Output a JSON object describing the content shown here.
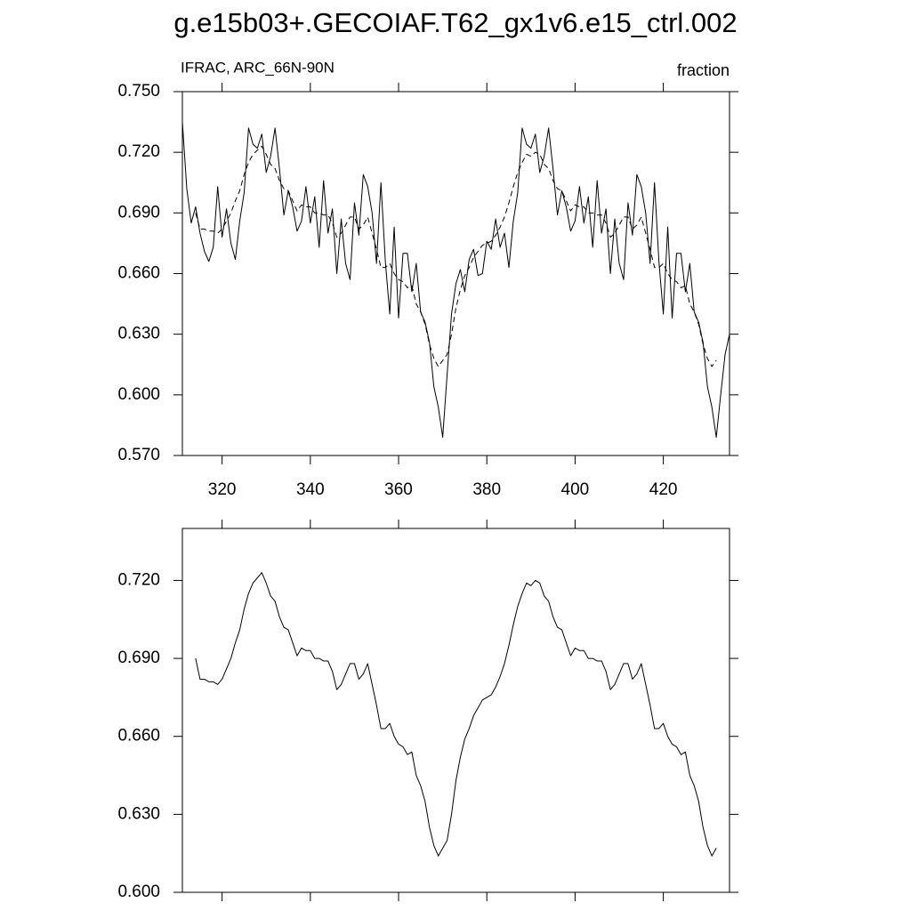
{
  "chart_data": [
    {
      "type": "line",
      "title": "g.e15b03+.GECOIAF.T62_gx1v6.e15_ctrl.002",
      "subtitle": "IFRAC, ARC_66N-90N",
      "units": "fraction",
      "x": [
        311,
        312,
        313,
        314,
        315,
        316,
        317,
        318,
        319,
        320,
        321,
        322,
        323,
        324,
        325,
        326,
        327,
        328,
        329,
        330,
        331,
        332,
        333,
        334,
        335,
        336,
        337,
        338,
        339,
        340,
        341,
        342,
        343,
        344,
        345,
        346,
        347,
        348,
        349,
        350,
        351,
        352,
        353,
        354,
        355,
        356,
        357,
        358,
        359,
        360,
        361,
        362,
        363,
        364,
        365,
        366,
        367,
        368,
        369,
        370,
        371,
        372,
        373,
        374,
        375,
        376,
        377,
        378,
        379,
        380,
        381,
        382,
        383,
        384,
        385,
        386,
        387,
        388,
        389,
        390,
        391,
        392,
        393,
        394,
        395,
        396,
        397,
        398,
        399,
        400,
        401,
        402,
        403,
        404,
        405,
        406,
        407,
        408,
        409,
        410,
        411,
        412,
        413,
        414,
        415,
        416,
        417,
        418,
        419,
        420,
        421,
        422,
        423,
        424,
        425,
        426,
        427,
        428,
        429,
        430,
        431,
        432,
        433,
        434,
        435
      ],
      "series": [
        {
          "color": "#000000",
          "dashed": false,
          "values": [
            0.735,
            0.702,
            0.685,
            0.693,
            0.68,
            0.671,
            0.666,
            0.673,
            0.703,
            0.678,
            0.692,
            0.675,
            0.667,
            0.686,
            0.7,
            0.732,
            0.724,
            0.722,
            0.729,
            0.71,
            0.718,
            0.732,
            0.712,
            0.689,
            0.701,
            0.693,
            0.681,
            0.686,
            0.703,
            0.685,
            0.698,
            0.673,
            0.706,
            0.68,
            0.692,
            0.66,
            0.687,
            0.665,
            0.657,
            0.695,
            0.679,
            0.709,
            0.703,
            0.69,
            0.665,
            0.705,
            0.666,
            0.64,
            0.683,
            0.638,
            0.67,
            0.67,
            0.651,
            0.665,
            0.641,
            0.636,
            0.626,
            0.604,
            0.594,
            0.579,
            0.61,
            0.64,
            0.655,
            0.662,
            0.651,
            0.667,
            0.672,
            0.659,
            0.66,
            0.676,
            0.672,
            0.687,
            0.673,
            0.68,
            0.663,
            0.686,
            0.7,
            0.732,
            0.724,
            0.722,
            0.729,
            0.71,
            0.718,
            0.732,
            0.712,
            0.689,
            0.701,
            0.693,
            0.681,
            0.686,
            0.703,
            0.685,
            0.698,
            0.673,
            0.706,
            0.68,
            0.692,
            0.66,
            0.687,
            0.665,
            0.657,
            0.695,
            0.679,
            0.709,
            0.703,
            0.69,
            0.665,
            0.705,
            0.666,
            0.64,
            0.683,
            0.638,
            0.67,
            0.67,
            0.651,
            0.665,
            0.641,
            0.636,
            0.626,
            0.604,
            0.594,
            0.579,
            0.6,
            0.62,
            0.63
          ]
        },
        {
          "color": "#000000",
          "dashed": true,
          "values": [
            null,
            null,
            null,
            0.69,
            0.682,
            0.682,
            0.681,
            0.681,
            0.68,
            0.682,
            0.686,
            0.69,
            0.696,
            0.701,
            0.709,
            0.715,
            0.719,
            0.721,
            0.723,
            0.719,
            0.714,
            0.712,
            0.706,
            0.702,
            0.701,
            0.696,
            0.691,
            0.694,
            0.693,
            0.693,
            0.69,
            0.69,
            0.689,
            0.689,
            0.685,
            0.678,
            0.68,
            0.684,
            0.688,
            0.688,
            0.682,
            0.684,
            0.688,
            0.68,
            0.672,
            0.663,
            0.663,
            0.665,
            0.66,
            0.657,
            0.656,
            0.653,
            0.654,
            0.645,
            0.641,
            0.635,
            0.625,
            0.618,
            0.614,
            0.617,
            0.62,
            0.63,
            0.643,
            0.652,
            0.659,
            0.663,
            0.668,
            0.671,
            0.674,
            0.675,
            0.676,
            0.679,
            0.683,
            0.688,
            0.695,
            0.703,
            0.71,
            0.715,
            0.719,
            0.718,
            0.72,
            0.719,
            0.714,
            0.712,
            0.706,
            0.702,
            0.701,
            0.696,
            0.691,
            0.694,
            0.693,
            0.693,
            0.69,
            0.69,
            0.689,
            0.689,
            0.685,
            0.678,
            0.68,
            0.684,
            0.688,
            0.688,
            0.682,
            0.684,
            0.688,
            0.68,
            0.672,
            0.663,
            0.663,
            0.665,
            0.66,
            0.657,
            0.656,
            0.653,
            0.654,
            0.645,
            0.641,
            0.635,
            0.625,
            0.618,
            0.614,
            0.617,
            null,
            null,
            null
          ]
        }
      ],
      "xlim": [
        311,
        435
      ],
      "xticks": [
        320,
        340,
        360,
        380,
        400,
        420
      ],
      "show_xtick_labels": true,
      "ylim": [
        0.57,
        0.75
      ],
      "yticks": [
        {
          "value": 0.57,
          "label": "0.570"
        },
        {
          "value": 0.6,
          "label": "0.600"
        },
        {
          "value": 0.63,
          "label": "0.630"
        },
        {
          "value": 0.66,
          "label": "0.660"
        },
        {
          "value": 0.69,
          "label": "0.690"
        },
        {
          "value": 0.72,
          "label": "0.720"
        },
        {
          "value": 0.75,
          "label": "0.750"
        }
      ]
    },
    {
      "type": "line",
      "x": [
        314,
        315,
        316,
        317,
        318,
        319,
        320,
        321,
        322,
        323,
        324,
        325,
        326,
        327,
        328,
        329,
        330,
        331,
        332,
        333,
        334,
        335,
        336,
        337,
        338,
        339,
        340,
        341,
        342,
        343,
        344,
        345,
        346,
        347,
        348,
        349,
        350,
        351,
        352,
        353,
        354,
        355,
        356,
        357,
        358,
        359,
        360,
        361,
        362,
        363,
        364,
        365,
        366,
        367,
        368,
        369,
        370,
        371,
        372,
        373,
        374,
        375,
        376,
        377,
        378,
        379,
        380,
        381,
        382,
        383,
        384,
        385,
        386,
        387,
        388,
        389,
        390,
        391,
        392,
        393,
        394,
        395,
        396,
        397,
        398,
        399,
        400,
        401,
        402,
        403,
        404,
        405,
        406,
        407,
        408,
        409,
        410,
        411,
        412,
        413,
        414,
        415,
        416,
        417,
        418,
        419,
        420,
        421,
        422,
        423,
        424,
        425,
        426,
        427,
        428,
        429,
        430,
        431,
        432
      ],
      "series": [
        {
          "color": "#000000",
          "dashed": false,
          "values": [
            0.69,
            0.682,
            0.682,
            0.681,
            0.681,
            0.68,
            0.682,
            0.686,
            0.69,
            0.696,
            0.701,
            0.709,
            0.715,
            0.719,
            0.721,
            0.723,
            0.719,
            0.714,
            0.712,
            0.706,
            0.702,
            0.701,
            0.696,
            0.691,
            0.694,
            0.693,
            0.693,
            0.69,
            0.69,
            0.689,
            0.689,
            0.685,
            0.678,
            0.68,
            0.684,
            0.688,
            0.688,
            0.682,
            0.684,
            0.688,
            0.68,
            0.672,
            0.663,
            0.663,
            0.665,
            0.66,
            0.657,
            0.656,
            0.653,
            0.654,
            0.645,
            0.641,
            0.635,
            0.625,
            0.618,
            0.614,
            0.617,
            0.62,
            0.63,
            0.643,
            0.652,
            0.659,
            0.663,
            0.668,
            0.671,
            0.674,
            0.675,
            0.676,
            0.679,
            0.683,
            0.688,
            0.695,
            0.703,
            0.71,
            0.715,
            0.719,
            0.718,
            0.72,
            0.719,
            0.714,
            0.712,
            0.706,
            0.702,
            0.701,
            0.696,
            0.691,
            0.694,
            0.693,
            0.693,
            0.69,
            0.69,
            0.689,
            0.689,
            0.685,
            0.678,
            0.68,
            0.684,
            0.688,
            0.688,
            0.682,
            0.684,
            0.688,
            0.68,
            0.672,
            0.663,
            0.663,
            0.665,
            0.66,
            0.657,
            0.656,
            0.653,
            0.654,
            0.645,
            0.641,
            0.635,
            0.625,
            0.618,
            0.614,
            0.617
          ]
        }
      ],
      "xlim": [
        311,
        435
      ],
      "xticks": [
        320,
        340,
        360,
        380,
        400,
        420
      ],
      "show_xtick_labels": false,
      "ylim": [
        0.6,
        0.74
      ],
      "yticks": [
        {
          "value": 0.6,
          "label": "0.600"
        },
        {
          "value": 0.63,
          "label": "0.630"
        },
        {
          "value": 0.66,
          "label": "0.660"
        },
        {
          "value": 0.69,
          "label": "0.690"
        },
        {
          "value": 0.72,
          "label": "0.720"
        }
      ]
    }
  ]
}
